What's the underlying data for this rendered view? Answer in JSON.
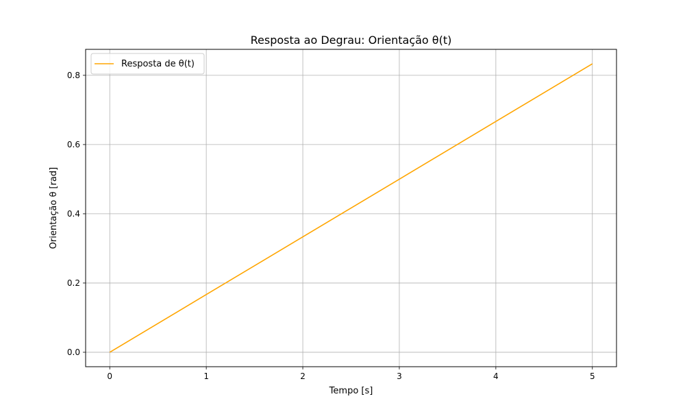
{
  "chart_data": {
    "type": "line",
    "title": "Resposta ao Degrau: Orientação θ(t)",
    "xlabel": "Tempo [s]",
    "ylabel": "Orientação θ [rad]",
    "xlim": [
      -0.25,
      5.25
    ],
    "ylim": [
      -0.0417,
      0.875
    ],
    "x_ticks": [
      0,
      1,
      2,
      3,
      4,
      5
    ],
    "x_tick_labels": [
      "0",
      "1",
      "2",
      "3",
      "4",
      "5"
    ],
    "y_ticks": [
      0.0,
      0.2,
      0.4,
      0.6,
      0.8
    ],
    "y_tick_labels": [
      "0.0",
      "0.2",
      "0.4",
      "0.6",
      "0.8"
    ],
    "grid": true,
    "legend_position": "top-left",
    "series": [
      {
        "name": "Resposta de θ(t)",
        "color": "#ffa500",
        "x": [
          0,
          1,
          2,
          3,
          4,
          5
        ],
        "y": [
          0,
          0.1667,
          0.3333,
          0.5,
          0.6667,
          0.8333
        ]
      }
    ]
  }
}
